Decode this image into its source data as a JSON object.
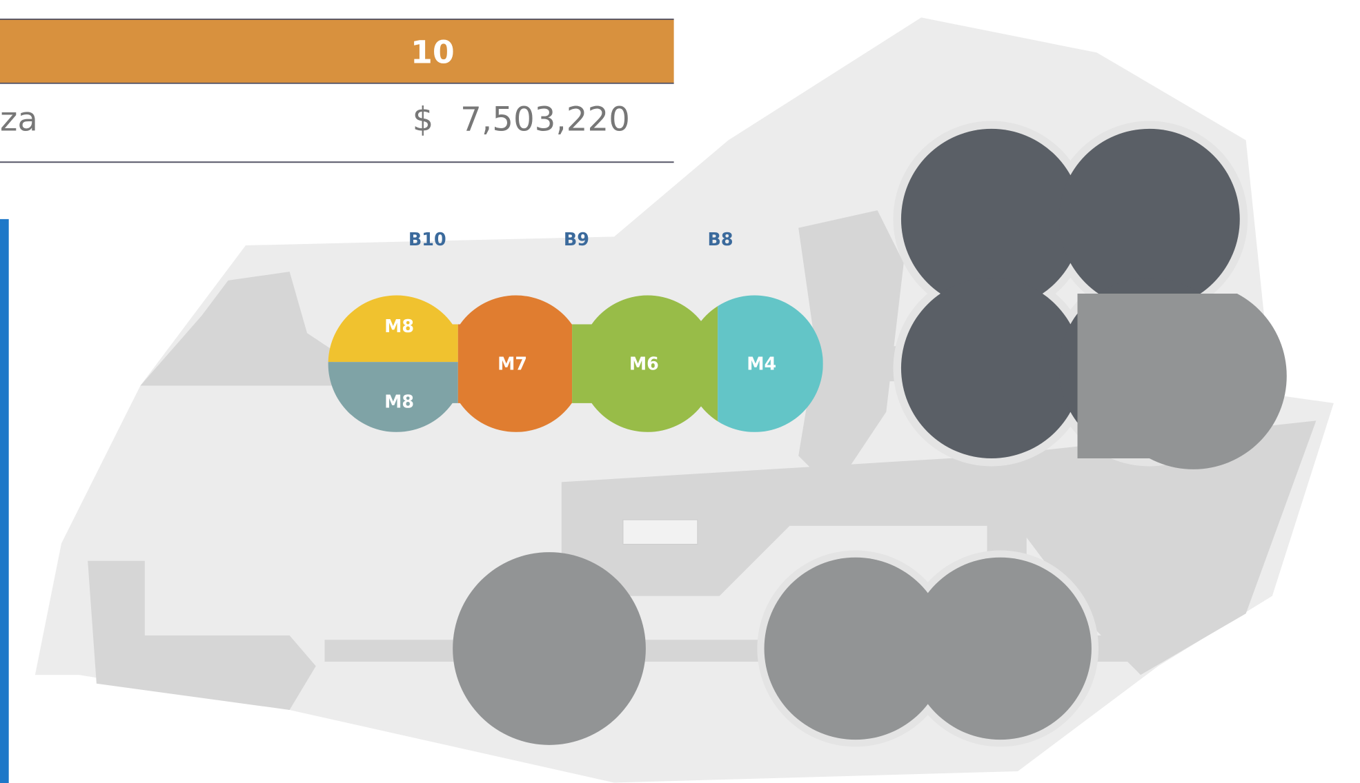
{
  "table": {
    "header": {
      "value": "10"
    },
    "rows": [
      {
        "label": "za",
        "currency": "$",
        "amount": "7,503,220"
      }
    ]
  },
  "map": {
    "buildings": [
      "B10",
      "B9",
      "B8"
    ],
    "modules": [
      "M8",
      "M8",
      "M7",
      "M6",
      "M4"
    ]
  }
}
